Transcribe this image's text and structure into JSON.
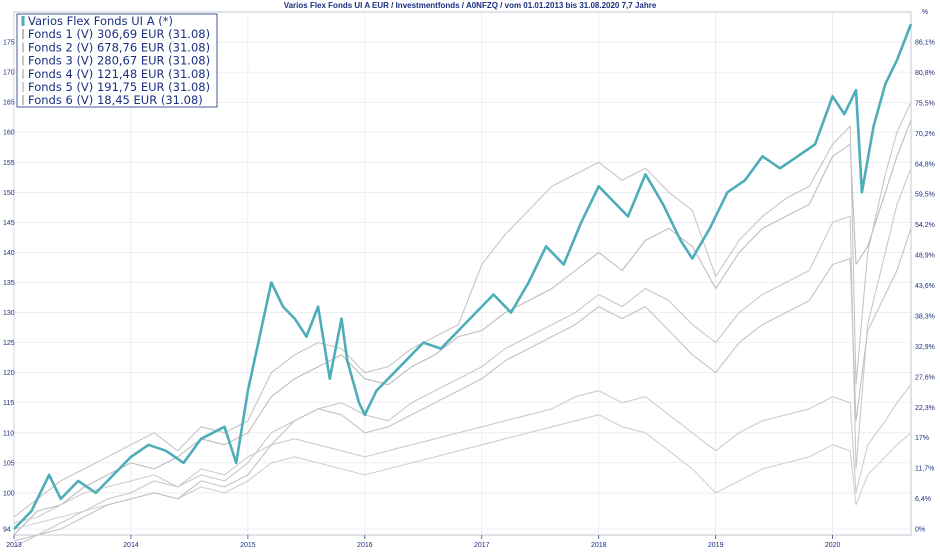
{
  "chart_data": {
    "type": "line",
    "title": "Varios Flex Fonds UI A EUR / Investmentfonds / A0NFZQ / vom 01.01.2013 bis 31.08.2020 7,7 Jahre",
    "y_left_ticks": [
      "94",
      "100",
      "105",
      "110",
      "115",
      "120",
      "125",
      "130",
      "135",
      "140",
      "145",
      "150",
      "155",
      "160",
      "165",
      "170",
      "175"
    ],
    "y_left_range": [
      93,
      180
    ],
    "y_right_header": "%",
    "y_right_ticks": [
      "0%",
      "6,4%",
      "11,7%",
      "17%",
      "22,3%",
      "27,6%",
      "32,9%",
      "38,3%",
      "43,6%",
      "48,9%",
      "54,2%",
      "59,5%",
      "64,8%",
      "70,2%",
      "75,5%",
      "80,8%",
      "86,1%"
    ],
    "x_ticks": [
      "2013",
      "2014",
      "2015",
      "2016",
      "2017",
      "2018",
      "2019",
      "2020"
    ],
    "x_range": [
      2013.0,
      2020.67
    ],
    "grid": true,
    "legend_position": "top-left",
    "series": [
      {
        "name": "Varios Flex Fonds UI A (*)",
        "color": "#4dadb8",
        "x": [
          2013.0,
          2013.15,
          2013.3,
          2013.4,
          2013.55,
          2013.7,
          2013.85,
          2014.0,
          2014.15,
          2014.3,
          2014.45,
          2014.6,
          2014.7,
          2014.8,
          2014.9,
          2015.0,
          2015.1,
          2015.2,
          2015.3,
          2015.4,
          2015.5,
          2015.6,
          2015.7,
          2015.8,
          2015.85,
          2015.95,
          2016.0,
          2016.1,
          2016.2,
          2016.35,
          2016.5,
          2016.65,
          2016.8,
          2016.95,
          2017.1,
          2017.25,
          2017.4,
          2017.55,
          2017.7,
          2017.85,
          2018.0,
          2018.1,
          2018.25,
          2018.4,
          2018.55,
          2018.7,
          2018.8,
          2018.95,
          2019.1,
          2019.25,
          2019.4,
          2019.55,
          2019.7,
          2019.85,
          2020.0,
          2020.1,
          2020.2,
          2020.25,
          2020.35,
          2020.45,
          2020.55,
          2020.67
        ],
        "values": [
          94,
          97,
          103,
          99,
          102,
          100,
          103,
          106,
          108,
          107,
          105,
          109,
          110,
          111,
          105,
          117,
          126,
          135,
          131,
          129,
          126,
          131,
          119,
          129,
          122,
          115,
          113,
          117,
          119,
          122,
          125,
          124,
          127,
          130,
          133,
          130,
          135,
          141,
          138,
          145,
          151,
          149,
          146,
          153,
          148,
          142,
          139,
          144,
          150,
          152,
          156,
          154,
          156,
          158,
          166,
          163,
          167,
          150,
          161,
          168,
          172,
          178
        ]
      },
      {
        "name": "Fonds 1 (V) 306,69 EUR (31.08)",
        "color": "#bdbdbd",
        "x": [
          2013.0,
          2013.2,
          2013.4,
          2013.6,
          2013.8,
          2014.0,
          2014.2,
          2014.4,
          2014.6,
          2014.8,
          2015.0,
          2015.2,
          2015.4,
          2015.6,
          2015.8,
          2016.0,
          2016.2,
          2016.4,
          2016.6,
          2016.8,
          2017.0,
          2017.2,
          2017.4,
          2017.6,
          2017.8,
          2018.0,
          2018.2,
          2018.4,
          2018.6,
          2018.8,
          2019.0,
          2019.2,
          2019.4,
          2019.6,
          2019.8,
          2020.0,
          2020.15,
          2020.2,
          2020.3,
          2020.45,
          2020.55,
          2020.67
        ],
        "values": [
          93,
          97,
          98,
          101,
          103,
          105,
          104,
          106,
          109,
          108,
          110,
          116,
          119,
          121,
          123,
          119,
          118,
          121,
          123,
          126,
          127,
          130,
          132,
          134,
          137,
          140,
          137,
          142,
          144,
          141,
          134,
          140,
          144,
          146,
          148,
          156,
          158,
          138,
          141,
          150,
          156,
          162
        ]
      },
      {
        "name": "Fonds 2 (V) 678,76 EUR (31.08)",
        "color": "#c6c6c6",
        "x": [
          2013.0,
          2013.2,
          2013.4,
          2013.6,
          2013.8,
          2014.0,
          2014.2,
          2014.4,
          2014.6,
          2014.8,
          2015.0,
          2015.2,
          2015.4,
          2015.6,
          2015.8,
          2016.0,
          2016.2,
          2016.4,
          2016.6,
          2016.8,
          2017.0,
          2017.2,
          2017.4,
          2017.6,
          2017.8,
          2018.0,
          2018.2,
          2018.4,
          2018.6,
          2018.8,
          2019.0,
          2019.2,
          2019.4,
          2019.6,
          2019.8,
          2020.0,
          2020.15,
          2020.2,
          2020.3,
          2020.45,
          2020.55,
          2020.67
        ],
        "values": [
          96,
          99,
          102,
          104,
          106,
          108,
          110,
          107,
          111,
          110,
          112,
          120,
          123,
          125,
          124,
          120,
          121,
          124,
          126,
          128,
          138,
          143,
          147,
          151,
          153,
          155,
          152,
          154,
          150,
          147,
          136,
          142,
          146,
          149,
          151,
          158,
          161,
          118,
          140,
          153,
          160,
          165
        ]
      },
      {
        "name": "Fonds 3 (V) 280,67 EUR (31.08)",
        "color": "#c9c9c9",
        "x": [
          2013.0,
          2013.2,
          2013.4,
          2013.6,
          2013.8,
          2014.0,
          2014.2,
          2014.4,
          2014.6,
          2014.8,
          2015.0,
          2015.2,
          2015.4,
          2015.6,
          2015.8,
          2016.0,
          2016.2,
          2016.4,
          2016.6,
          2016.8,
          2017.0,
          2017.2,
          2017.4,
          2017.6,
          2017.8,
          2018.0,
          2018.2,
          2018.4,
          2018.6,
          2018.8,
          2019.0,
          2019.2,
          2019.4,
          2019.6,
          2019.8,
          2020.0,
          2020.15,
          2020.2,
          2020.3,
          2020.45,
          2020.55,
          2020.67
        ],
        "values": [
          91,
          93,
          95,
          97,
          99,
          100,
          102,
          101,
          103,
          102,
          105,
          110,
          112,
          114,
          115,
          113,
          112,
          115,
          117,
          119,
          121,
          124,
          126,
          128,
          130,
          133,
          131,
          134,
          132,
          128,
          125,
          130,
          133,
          135,
          137,
          145,
          146,
          104,
          128,
          140,
          148,
          154
        ]
      },
      {
        "name": "Fonds 4 (V) 121,48 EUR (31.08)",
        "color": "#cdcdcd",
        "x": [
          2013.0,
          2013.2,
          2013.4,
          2013.6,
          2013.8,
          2014.0,
          2014.2,
          2014.4,
          2014.6,
          2014.8,
          2015.0,
          2015.2,
          2015.4,
          2015.6,
          2015.8,
          2016.0,
          2016.2,
          2016.4,
          2016.6,
          2016.8,
          2017.0,
          2017.2,
          2017.4,
          2017.6,
          2017.8,
          2018.0,
          2018.2,
          2018.4,
          2018.6,
          2018.8,
          2019.0,
          2019.2,
          2019.4,
          2019.6,
          2019.8,
          2020.0,
          2020.15,
          2020.2,
          2020.3,
          2020.45,
          2020.55,
          2020.67
        ],
        "values": [
          95,
          96,
          98,
          100,
          101,
          102,
          103,
          101,
          104,
          103,
          106,
          108,
          109,
          108,
          107,
          106,
          107,
          108,
          109,
          110,
          111,
          112,
          113,
          114,
          116,
          117,
          115,
          116,
          113,
          110,
          107,
          110,
          112,
          113,
          114,
          116,
          115,
          100,
          108,
          112,
          115,
          118
        ]
      },
      {
        "name": "Fonds 5 (V) 191,75 EUR (31.08)",
        "color": "#d0d0d0",
        "x": [
          2013.0,
          2013.2,
          2013.4,
          2013.6,
          2013.8,
          2014.0,
          2014.2,
          2014.4,
          2014.6,
          2014.8,
          2015.0,
          2015.2,
          2015.4,
          2015.6,
          2015.8,
          2016.0,
          2016.2,
          2016.4,
          2016.6,
          2016.8,
          2017.0,
          2017.2,
          2017.4,
          2017.6,
          2017.8,
          2018.0,
          2018.2,
          2018.4,
          2018.6,
          2018.8,
          2019.0,
          2019.2,
          2019.4,
          2019.6,
          2019.8,
          2020.0,
          2020.15,
          2020.2,
          2020.3,
          2020.45,
          2020.55,
          2020.67
        ],
        "values": [
          94,
          95,
          96,
          97,
          98,
          99,
          100,
          99,
          101,
          100,
          102,
          105,
          106,
          105,
          104,
          103,
          104,
          105,
          106,
          107,
          108,
          109,
          110,
          111,
          112,
          113,
          111,
          110,
          107,
          104,
          100,
          102,
          104,
          105,
          106,
          108,
          107,
          98,
          103,
          106,
          108,
          110
        ]
      },
      {
        "name": "Fonds 6 (V) 18,45 EUR (31.08)",
        "color": "#c3c3c3",
        "x": [
          2013.0,
          2013.2,
          2013.4,
          2013.6,
          2013.8,
          2014.0,
          2014.2,
          2014.4,
          2014.6,
          2014.8,
          2015.0,
          2015.2,
          2015.4,
          2015.6,
          2015.8,
          2016.0,
          2016.2,
          2016.4,
          2016.6,
          2016.8,
          2017.0,
          2017.2,
          2017.4,
          2017.6,
          2017.8,
          2018.0,
          2018.2,
          2018.4,
          2018.6,
          2018.8,
          2019.0,
          2019.2,
          2019.4,
          2019.6,
          2019.8,
          2020.0,
          2020.15,
          2020.2,
          2020.3,
          2020.45,
          2020.55,
          2020.67
        ],
        "values": [
          92,
          93,
          94,
          96,
          98,
          99,
          100,
          99,
          102,
          101,
          103,
          108,
          112,
          114,
          113,
          110,
          111,
          113,
          115,
          117,
          119,
          122,
          124,
          126,
          128,
          131,
          129,
          131,
          127,
          123,
          120,
          125,
          128,
          130,
          132,
          138,
          139,
          112,
          127,
          133,
          137,
          144
        ]
      }
    ]
  }
}
